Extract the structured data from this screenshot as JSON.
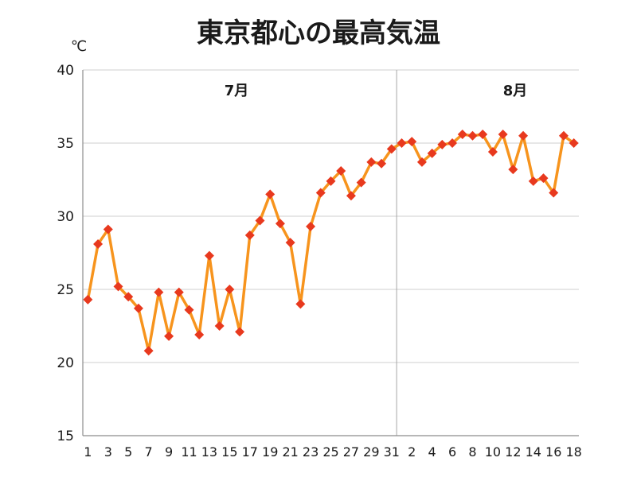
{
  "chart_data": {
    "type": "line",
    "title": "東京都心の最高気温",
    "ylabel": "℃",
    "ylim": [
      15,
      40
    ],
    "yticks": [
      15,
      20,
      25,
      30,
      35,
      40
    ],
    "grid": true,
    "legend": "none",
    "marker": "diamond",
    "colors": {
      "line": "#F7941D",
      "marker": "#E8391E",
      "grid": "#CFCFCF",
      "axis": "#8C8C8C",
      "divider": "#A6A6A6"
    },
    "months": [
      {
        "label": "7月",
        "x": [
          1,
          2,
          3,
          4,
          5,
          6,
          7,
          8,
          9,
          10,
          11,
          12,
          13,
          14,
          15,
          16,
          17,
          18,
          19,
          20,
          21,
          22,
          23,
          24,
          25,
          26,
          27,
          28,
          29,
          30,
          31
        ],
        "tick_labels": [
          1,
          3,
          5,
          7,
          9,
          11,
          13,
          15,
          17,
          19,
          21,
          23,
          25,
          27,
          29,
          31
        ],
        "values": [
          24.3,
          28.1,
          29.1,
          25.2,
          24.5,
          23.7,
          20.8,
          24.8,
          21.8,
          24.8,
          23.6,
          21.9,
          27.3,
          22.5,
          25.0,
          22.1,
          28.7,
          29.7,
          31.5,
          29.5,
          28.2,
          24.0,
          29.3,
          31.6,
          32.4,
          33.1,
          31.4,
          32.3,
          33.7,
          33.6,
          34.6
        ]
      },
      {
        "label": "8月",
        "x": [
          1,
          2,
          3,
          4,
          5,
          6,
          7,
          8,
          9,
          10,
          11,
          12,
          13,
          14,
          15,
          16,
          17,
          18
        ],
        "tick_labels": [
          2,
          4,
          6,
          8,
          10,
          12,
          14,
          16,
          18
        ],
        "values": [
          35.0,
          35.1,
          33.7,
          34.3,
          34.9,
          35.0,
          35.6,
          35.5,
          35.6,
          34.4,
          35.6,
          33.2,
          35.5,
          32.4,
          32.6,
          31.6,
          35.5,
          35.0
        ]
      }
    ]
  }
}
